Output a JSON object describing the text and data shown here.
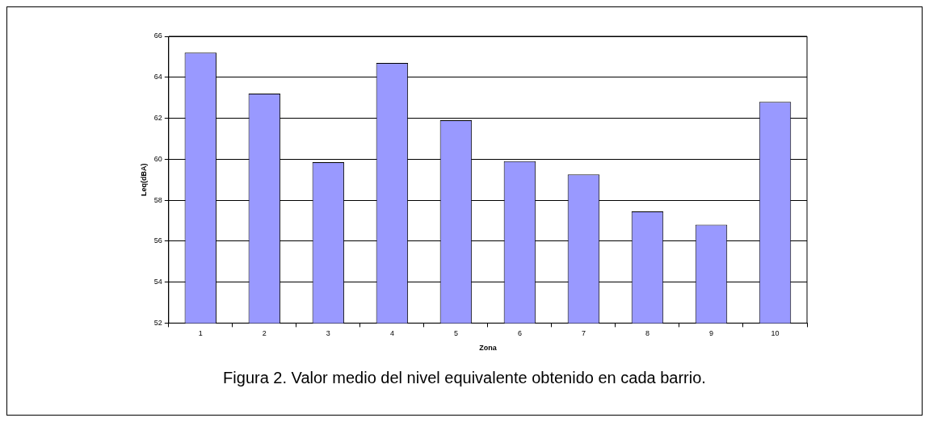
{
  "chart_data": {
    "type": "bar",
    "xlabel": "Zona",
    "ylabel": "Leq(dBA)",
    "categories": [
      "1",
      "2",
      "3",
      "4",
      "5",
      "6",
      "7",
      "8",
      "9",
      "10"
    ],
    "values": [
      65.2,
      63.2,
      59.85,
      64.7,
      61.9,
      59.9,
      59.25,
      57.45,
      56.8,
      62.8
    ],
    "color": "#9999ff",
    "ylim": [
      52,
      66
    ],
    "yticks": [
      52,
      54,
      56,
      58,
      60,
      62,
      64,
      66
    ],
    "grid": "y",
    "legend": false,
    "annotations": [
      "Figura 2. Valor medio del nivel equivalente obtenido en cada barrio."
    ]
  }
}
